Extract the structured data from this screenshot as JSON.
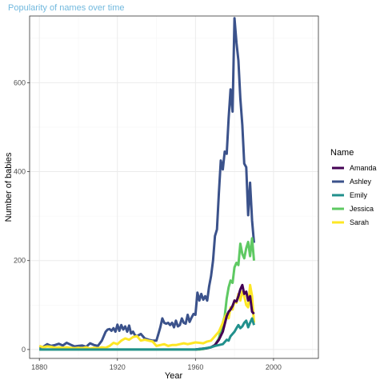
{
  "chart_data": {
    "type": "line",
    "title": "Popularity of names over time",
    "xlabel": "Year",
    "ylabel": "Number of babies",
    "xlim": [
      1875,
      2023
    ],
    "ylim": [
      -20,
      750
    ],
    "xticks": [
      1880,
      1920,
      1960,
      2000
    ],
    "yticks": [
      0,
      200,
      400,
      600
    ],
    "grid": true,
    "legend": {
      "title": "Name",
      "position": "right"
    },
    "colors": {
      "title": "#72b9de",
      "panel_border": "#333333",
      "grid_major": "#ebebeb",
      "grid_minor": "#f5f5f5"
    },
    "series": [
      {
        "name": "Ashley",
        "color": "#3b528b",
        "x": [
          1880,
          1882,
          1884,
          1886,
          1888,
          1890,
          1892,
          1894,
          1896,
          1898,
          1900,
          1902,
          1904,
          1906,
          1908,
          1910,
          1912,
          1914,
          1915,
          1916,
          1917,
          1918,
          1919,
          1920,
          1921,
          1922,
          1923,
          1924,
          1925,
          1926,
          1927,
          1928,
          1929,
          1930,
          1932,
          1934,
          1936,
          1938,
          1940,
          1941,
          1942,
          1943,
          1944,
          1945,
          1946,
          1947,
          1948,
          1949,
          1950,
          1951,
          1952,
          1953,
          1954,
          1955,
          1956,
          1957,
          1958,
          1959,
          1960,
          1961,
          1962,
          1963,
          1964,
          1965,
          1966,
          1967,
          1968,
          1969,
          1970,
          1971,
          1972,
          1973,
          1974,
          1975,
          1976,
          1977,
          1978,
          1979,
          1980,
          1981,
          1982,
          1983,
          1984,
          1985,
          1986,
          1987,
          1988,
          1989,
          1990
        ],
        "y": [
          5,
          6,
          12,
          8,
          10,
          13,
          9,
          15,
          11,
          7,
          8,
          9,
          6,
          14,
          10,
          8,
          20,
          40,
          45,
          46,
          42,
          48,
          40,
          56,
          42,
          55,
          45,
          52,
          40,
          54,
          36,
          40,
          32,
          30,
          35,
          25,
          22,
          20,
          20,
          35,
          50,
          70,
          60,
          58,
          60,
          55,
          60,
          50,
          65,
          52,
          55,
          70,
          60,
          58,
          78,
          62,
          72,
          80,
          78,
          128,
          110,
          125,
          112,
          120,
          110,
          142,
          165,
          200,
          255,
          270,
          352,
          425,
          405,
          445,
          440,
          520,
          585,
          535,
          745,
          690,
          650,
          565,
          505,
          418,
          410,
          302,
          375,
          290,
          240
        ]
      },
      {
        "name": "Jessica",
        "color": "#5ec962",
        "x": [
          1880,
          1890,
          1900,
          1910,
          1920,
          1930,
          1940,
          1950,
          1955,
          1960,
          1962,
          1964,
          1966,
          1968,
          1970,
          1972,
          1974,
          1975,
          1976,
          1977,
          1978,
          1979,
          1980,
          1981,
          1982,
          1983,
          1984,
          1985,
          1986,
          1987,
          1988,
          1989,
          1990
        ],
        "y": [
          0,
          0,
          0,
          0,
          0,
          0,
          0,
          0,
          0,
          0,
          0,
          1,
          3,
          5,
          10,
          25,
          60,
          75,
          115,
          140,
          155,
          150,
          185,
          195,
          190,
          238,
          215,
          205,
          228,
          242,
          210,
          250,
          200
        ]
      },
      {
        "name": "Sarah",
        "color": "#fde725",
        "x": [
          1880,
          1882,
          1884,
          1886,
          1888,
          1890,
          1892,
          1894,
          1896,
          1898,
          1900,
          1902,
          1904,
          1906,
          1908,
          1910,
          1912,
          1914,
          1916,
          1918,
          1920,
          1922,
          1924,
          1926,
          1928,
          1930,
          1932,
          1934,
          1936,
          1938,
          1940,
          1942,
          1944,
          1946,
          1948,
          1950,
          1952,
          1954,
          1956,
          1958,
          1960,
          1962,
          1964,
          1966,
          1968,
          1970,
          1972,
          1974,
          1975,
          1976,
          1977,
          1978,
          1979,
          1980,
          1981,
          1982,
          1983,
          1984,
          1985,
          1986,
          1987,
          1988,
          1989,
          1990
        ],
        "y": [
          8,
          5,
          7,
          6,
          4,
          5,
          4,
          5,
          4,
          3,
          4,
          3,
          5,
          2,
          4,
          3,
          5,
          4,
          8,
          15,
          12,
          20,
          25,
          22,
          28,
          30,
          20,
          22,
          20,
          18,
          8,
          10,
          12,
          8,
          10,
          10,
          12,
          14,
          12,
          14,
          16,
          15,
          14,
          18,
          20,
          30,
          40,
          60,
          72,
          80,
          70,
          95,
          90,
          110,
          105,
          125,
          110,
          130,
          120,
          100,
          95,
          145,
          120,
          60
        ]
      },
      {
        "name": "Amanda",
        "color": "#440154",
        "x": [
          1960,
          1962,
          1964,
          1966,
          1968,
          1970,
          1972,
          1974,
          1976,
          1977,
          1978,
          1979,
          1980,
          1981,
          1982,
          1983,
          1984,
          1985,
          1986,
          1987,
          1988,
          1989,
          1990
        ],
        "y": [
          0,
          1,
          2,
          3,
          5,
          10,
          22,
          40,
          75,
          85,
          90,
          98,
          110,
          108,
          120,
          135,
          145,
          125,
          130,
          110,
          120,
          85,
          80
        ]
      },
      {
        "name": "Emily",
        "color": "#21908c",
        "x": [
          1880,
          1890,
          1900,
          1910,
          1920,
          1930,
          1940,
          1950,
          1960,
          1964,
          1968,
          1970,
          1972,
          1974,
          1976,
          1977,
          1978,
          1979,
          1980,
          1981,
          1982,
          1983,
          1984,
          1985,
          1986,
          1987,
          1988,
          1989,
          1990
        ],
        "y": [
          0,
          0,
          0,
          0,
          0,
          0,
          0,
          0,
          0,
          2,
          5,
          8,
          10,
          12,
          22,
          20,
          30,
          35,
          40,
          48,
          55,
          48,
          52,
          60,
          65,
          50,
          60,
          70,
          55
        ]
      }
    ],
    "legend_order": [
      "Amanda",
      "Ashley",
      "Emily",
      "Jessica",
      "Sarah"
    ]
  }
}
